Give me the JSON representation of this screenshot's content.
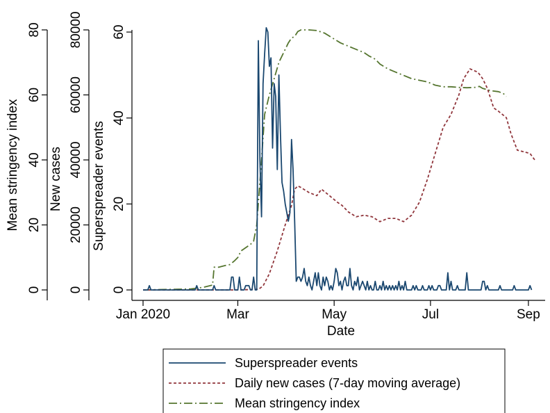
{
  "chart_data": {
    "type": "line",
    "xlabel": "Date",
    "x_ticks": [
      "Jan 2020",
      "Mar",
      "May",
      "Jul",
      "Sep"
    ],
    "x_tick_days": [
      0,
      60,
      121,
      182,
      244
    ],
    "xlim_days": [
      0,
      248
    ],
    "grid": false,
    "legend_position": "bottom",
    "axes": [
      {
        "id": "stringency",
        "label": "Mean stringency index",
        "ylim": [
          0,
          80
        ],
        "ticks": [
          "0",
          "20",
          "40",
          "60",
          "80"
        ],
        "tick_values": [
          0,
          20,
          40,
          60,
          80
        ]
      },
      {
        "id": "cases",
        "label": "New cases",
        "ylim": [
          0,
          80000
        ],
        "ticks": [
          "0",
          "20000",
          "40000",
          "60000",
          "80000"
        ],
        "tick_values": [
          0,
          20000,
          40000,
          60000,
          80000
        ]
      },
      {
        "id": "events",
        "label": "Superspreader events",
        "ylim": [
          0,
          60.5
        ],
        "ticks": [
          "0",
          "20",
          "40",
          "60"
        ],
        "tick_values": [
          0,
          20,
          40,
          60
        ]
      }
    ],
    "series": [
      {
        "name": "Superspreader events",
        "axis": "events",
        "color": "#1a476f",
        "style": "solid",
        "points": [
          [
            0,
            0
          ],
          [
            3,
            0
          ],
          [
            4,
            1
          ],
          [
            5,
            0
          ],
          [
            33,
            0
          ],
          [
            34,
            1
          ],
          [
            35,
            0
          ],
          [
            44,
            0
          ],
          [
            45,
            1
          ],
          [
            46,
            0
          ],
          [
            55,
            0
          ],
          [
            56,
            3
          ],
          [
            57,
            3
          ],
          [
            58,
            0
          ],
          [
            60,
            0
          ],
          [
            61,
            3
          ],
          [
            62,
            0
          ],
          [
            64,
            0
          ],
          [
            65,
            1
          ],
          [
            66,
            1
          ],
          [
            67,
            1
          ],
          [
            68,
            0
          ],
          [
            69,
            0
          ],
          [
            70,
            3
          ],
          [
            71,
            0
          ],
          [
            72,
            0
          ],
          [
            73,
            58
          ],
          [
            74,
            30
          ],
          [
            75,
            17
          ],
          [
            76,
            48
          ],
          [
            77,
            55
          ],
          [
            78,
            61
          ],
          [
            79,
            60
          ],
          [
            80,
            52
          ],
          [
            81,
            54
          ],
          [
            82,
            33
          ],
          [
            83,
            48
          ],
          [
            84,
            45
          ],
          [
            85,
            28
          ],
          [
            86,
            50
          ],
          [
            87,
            36
          ],
          [
            88,
            25
          ],
          [
            89,
            23
          ],
          [
            90,
            20
          ],
          [
            91,
            18
          ],
          [
            92,
            16
          ],
          [
            93,
            18
          ],
          [
            94,
            35
          ],
          [
            95,
            28
          ],
          [
            96,
            16
          ],
          [
            97,
            2
          ],
          [
            98,
            3
          ],
          [
            99,
            3
          ],
          [
            100,
            2
          ],
          [
            101,
            3
          ],
          [
            102,
            5
          ],
          [
            103,
            2
          ],
          [
            104,
            1
          ],
          [
            105,
            3
          ],
          [
            106,
            1
          ],
          [
            107,
            0
          ],
          [
            108,
            2
          ],
          [
            109,
            4
          ],
          [
            110,
            1
          ],
          [
            111,
            4
          ],
          [
            112,
            1
          ],
          [
            113,
            0
          ],
          [
            114,
            3
          ],
          [
            115,
            1
          ],
          [
            116,
            3
          ],
          [
            117,
            2
          ],
          [
            118,
            0
          ],
          [
            119,
            1
          ],
          [
            120,
            0
          ],
          [
            121,
            2
          ],
          [
            122,
            5
          ],
          [
            123,
            4
          ],
          [
            124,
            1
          ],
          [
            125,
            2
          ],
          [
            126,
            0
          ],
          [
            127,
            2
          ],
          [
            128,
            3
          ],
          [
            129,
            1
          ],
          [
            130,
            1
          ],
          [
            131,
            5
          ],
          [
            132,
            1
          ],
          [
            133,
            0
          ],
          [
            134,
            2
          ],
          [
            135,
            1
          ],
          [
            136,
            3
          ],
          [
            137,
            0
          ],
          [
            138,
            1
          ],
          [
            139,
            2
          ],
          [
            140,
            1
          ],
          [
            141,
            0
          ],
          [
            142,
            2
          ],
          [
            143,
            0
          ],
          [
            144,
            1
          ],
          [
            145,
            0
          ],
          [
            146,
            0
          ],
          [
            147,
            2
          ],
          [
            148,
            0
          ],
          [
            149,
            0
          ],
          [
            150,
            1
          ],
          [
            151,
            0
          ],
          [
            152,
            2
          ],
          [
            153,
            0
          ],
          [
            154,
            1
          ],
          [
            155,
            0
          ],
          [
            156,
            1
          ],
          [
            157,
            0
          ],
          [
            158,
            1
          ],
          [
            159,
            0
          ],
          [
            160,
            1
          ],
          [
            161,
            0
          ],
          [
            162,
            2
          ],
          [
            163,
            0
          ],
          [
            164,
            1
          ],
          [
            165,
            0
          ],
          [
            166,
            2
          ],
          [
            167,
            0
          ],
          [
            170,
            0
          ],
          [
            171,
            1
          ],
          [
            172,
            0
          ],
          [
            173,
            1
          ],
          [
            174,
            0
          ],
          [
            176,
            0
          ],
          [
            177,
            1
          ],
          [
            178,
            0
          ],
          [
            180,
            0
          ],
          [
            181,
            1
          ],
          [
            182,
            0
          ],
          [
            183,
            1
          ],
          [
            184,
            0
          ],
          [
            186,
            0
          ],
          [
            187,
            1
          ],
          [
            188,
            1
          ],
          [
            189,
            0
          ],
          [
            192,
            0
          ],
          [
            193,
            4
          ],
          [
            194,
            0
          ],
          [
            195,
            2
          ],
          [
            196,
            0
          ],
          [
            198,
            0
          ],
          [
            199,
            1
          ],
          [
            200,
            0
          ],
          [
            204,
            0
          ],
          [
            205,
            4
          ],
          [
            206,
            0
          ],
          [
            214,
            0
          ],
          [
            215,
            2
          ],
          [
            216,
            2
          ],
          [
            217,
            0
          ],
          [
            218,
            1
          ],
          [
            219,
            0
          ],
          [
            225,
            0
          ],
          [
            226,
            1
          ],
          [
            227,
            0
          ],
          [
            234,
            0
          ],
          [
            235,
            1
          ],
          [
            236,
            0
          ],
          [
            244,
            0
          ],
          [
            245,
            1
          ],
          [
            246,
            0
          ]
        ]
      },
      {
        "name": "Daily new cases (7-day moving average)",
        "axis": "cases",
        "color": "#90353b",
        "style": "dash",
        "points": [
          [
            0,
            0
          ],
          [
            30,
            0
          ],
          [
            60,
            0
          ],
          [
            73,
            200
          ],
          [
            76,
            1200
          ],
          [
            80,
            5000
          ],
          [
            85,
            12000
          ],
          [
            90,
            20000
          ],
          [
            94,
            26000
          ],
          [
            96,
            31000
          ],
          [
            98,
            32000
          ],
          [
            100,
            31500
          ],
          [
            105,
            30000
          ],
          [
            110,
            29000
          ],
          [
            113,
            31000
          ],
          [
            118,
            29000
          ],
          [
            123,
            27000
          ],
          [
            126,
            26000
          ],
          [
            130,
            24000
          ],
          [
            135,
            22500
          ],
          [
            140,
            23000
          ],
          [
            145,
            22500
          ],
          [
            150,
            21000
          ],
          [
            155,
            22000
          ],
          [
            160,
            22000
          ],
          [
            165,
            21000
          ],
          [
            170,
            23000
          ],
          [
            175,
            27000
          ],
          [
            180,
            34000
          ],
          [
            185,
            42000
          ],
          [
            190,
            50000
          ],
          [
            195,
            54000
          ],
          [
            200,
            60000
          ],
          [
            203,
            65000
          ],
          [
            207,
            68000
          ],
          [
            212,
            67000
          ],
          [
            215,
            65000
          ],
          [
            218,
            62000
          ],
          [
            222,
            56000
          ],
          [
            225,
            55000
          ],
          [
            230,
            53000
          ],
          [
            233,
            48000
          ],
          [
            237,
            43000
          ],
          [
            241,
            42500
          ],
          [
            245,
            42000
          ],
          [
            248,
            40000
          ]
        ]
      },
      {
        "name": "Mean stringency index",
        "axis": "stringency",
        "color": "#55752f",
        "style": "dashdot",
        "points": [
          [
            0,
            0
          ],
          [
            30,
            0.3
          ],
          [
            38,
            0.8
          ],
          [
            44,
            1.5
          ],
          [
            45,
            7
          ],
          [
            48,
            7
          ],
          [
            52,
            7.5
          ],
          [
            55,
            7.8
          ],
          [
            58,
            9
          ],
          [
            60,
            10
          ],
          [
            62,
            12
          ],
          [
            65,
            13
          ],
          [
            68,
            14
          ],
          [
            70,
            15
          ],
          [
            72,
            20
          ],
          [
            75,
            40
          ],
          [
            77,
            54
          ],
          [
            80,
            60
          ],
          [
            83,
            65
          ],
          [
            86,
            70
          ],
          [
            89,
            73
          ],
          [
            92,
            76
          ],
          [
            94,
            77.5
          ],
          [
            96,
            78
          ],
          [
            98,
            79.5
          ],
          [
            100,
            80
          ],
          [
            105,
            80
          ],
          [
            110,
            79.8
          ],
          [
            115,
            79
          ],
          [
            120,
            77.5
          ],
          [
            125,
            76
          ],
          [
            130,
            75
          ],
          [
            135,
            74
          ],
          [
            140,
            73
          ],
          [
            143,
            72
          ],
          [
            147,
            71
          ],
          [
            150,
            69.5
          ],
          [
            155,
            68
          ],
          [
            160,
            67
          ],
          [
            165,
            66
          ],
          [
            170,
            65
          ],
          [
            175,
            64.5
          ],
          [
            180,
            64
          ],
          [
            185,
            63
          ],
          [
            190,
            62.5
          ],
          [
            195,
            62.5
          ],
          [
            200,
            62.3
          ],
          [
            205,
            62.2
          ],
          [
            210,
            62.3
          ],
          [
            213,
            62.6
          ],
          [
            215,
            62
          ],
          [
            220,
            61.3
          ],
          [
            225,
            61
          ],
          [
            228,
            60.5
          ],
          [
            230,
            59.5
          ]
        ]
      }
    ]
  }
}
